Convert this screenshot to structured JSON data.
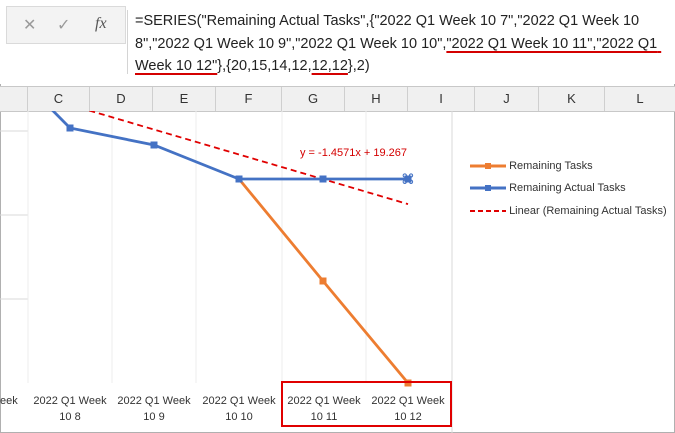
{
  "formula_bar": {
    "cancel_icon": "✕",
    "enter_icon": "✓",
    "fx_icon": "fx",
    "formula_parts": [
      "=SERIES(\"Remaining Actual Tasks\",{\"2022 Q1 Week 10 7\",\"2022 Q1 Week 10 8\",\"2022 Q1 Week 10 9\",\"2022 Q1 Week 10 10\",",
      "\"2022 Q1 Week 10 11\",\"2022 Q1 Week 10 12\"",
      "},{20,15,14,12,",
      "12,12",
      "},2)"
    ]
  },
  "columns": [
    "C",
    "D",
    "E",
    "F",
    "G",
    "H",
    "I",
    "J",
    "K",
    "L"
  ],
  "legend": [
    {
      "label": "Remaining Tasks",
      "color": "#ed7d31",
      "style": "solid-marker"
    },
    {
      "label": "Remaining Actual Tasks",
      "color": "#4472c4",
      "style": "solid-marker"
    },
    {
      "label": "Linear (Remaining Actual Tasks)",
      "color": "#e00000",
      "style": "dashed"
    }
  ],
  "trendline_equation": "y = -1.4571x + 19.267",
  "x_axis_labels": [
    {
      "line1": "eek",
      "line2": ""
    },
    {
      "line1": "2022 Q1 Week",
      "line2": "10 8"
    },
    {
      "line1": "2022 Q1 Week",
      "line2": "10 9"
    },
    {
      "line1": "2022 Q1 Week",
      "line2": "10 10"
    },
    {
      "line1": "2022 Q1 Week",
      "line2": "10 11"
    },
    {
      "line1": "2022 Q1 Week",
      "line2": "10 12"
    }
  ],
  "chart_data": {
    "type": "line",
    "categories": [
      "2022 Q1 Week 10 7",
      "2022 Q1 Week 10 8",
      "2022 Q1 Week 10 9",
      "2022 Q1 Week 10 10",
      "2022 Q1 Week 10 11",
      "2022 Q1 Week 10 12"
    ],
    "series": [
      {
        "name": "Remaining Tasks",
        "color": "#ed7d31",
        "values": [
          null,
          null,
          null,
          12,
          6,
          0
        ]
      },
      {
        "name": "Remaining Actual Tasks",
        "color": "#4472c4",
        "values": [
          20,
          15,
          14,
          12,
          12,
          12
        ]
      }
    ],
    "trendline": {
      "name": "Linear (Remaining Actual Tasks)",
      "slope": -1.4571,
      "intercept": 19.267,
      "color": "#e00000"
    },
    "ylim": [
      0,
      16
    ],
    "grid": true
  }
}
